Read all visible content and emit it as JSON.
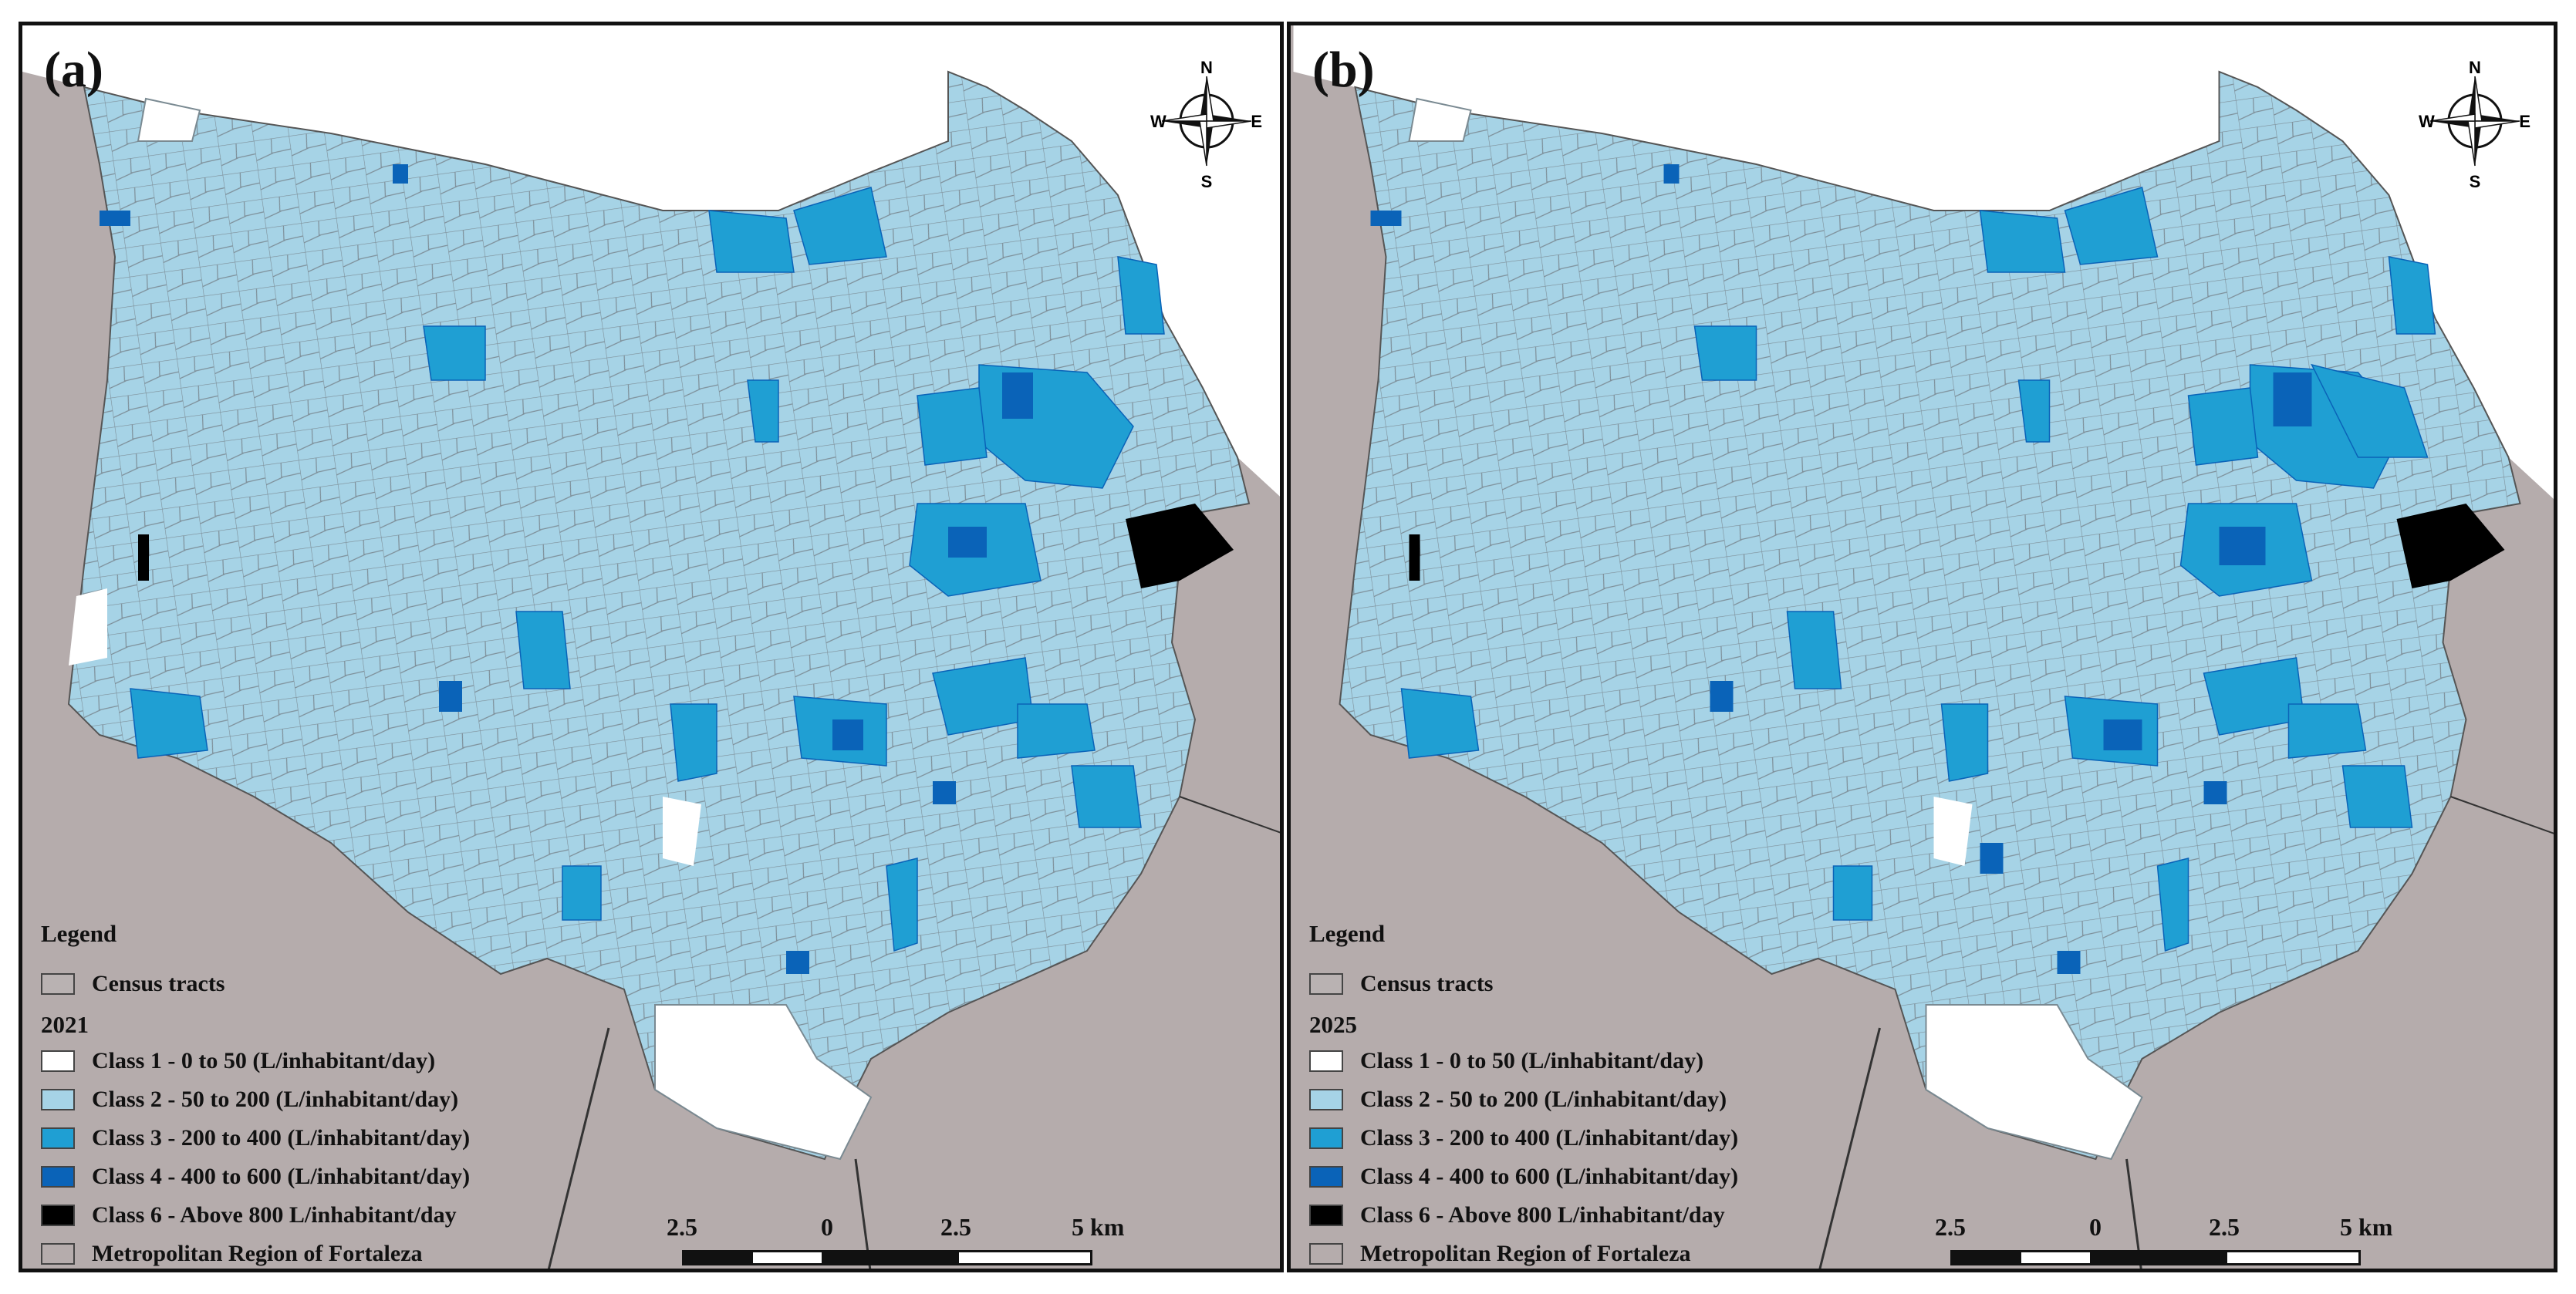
{
  "colors": {
    "outside": "#b5acac",
    "class1": "#ffffff",
    "class2": "#a6d3e6",
    "class3": "#1f9fd3",
    "class4": "#0a63b8",
    "class6": "#000000",
    "tract_border": "#7a8a92",
    "census_tracts": "#b9b2b2"
  },
  "panels": [
    {
      "label": "(a)",
      "year": "2021",
      "legend": {
        "title": "Legend",
        "census_tracts": "Census tracts",
        "classes": [
          {
            "key": "class1",
            "label": "Class 1 - 0 to 50 (L/inhabitant/day)"
          },
          {
            "key": "class2",
            "label": "Class 2 - 50 to 200 (L/inhabitant/day)"
          },
          {
            "key": "class3",
            "label": "Class 3 - 200 to 400 (L/inhabitant/day)"
          },
          {
            "key": "class4",
            "label": "Class 4 - 400 to 600 (L/inhabitant/day)"
          },
          {
            "key": "class6",
            "label": "Class 6 - Above 800 L/inhabitant/day"
          }
        ],
        "metro_region": "Metropolitan Region of Fortaleza"
      },
      "compass": {
        "n": "N",
        "s": "S",
        "e": "E",
        "w": "W"
      },
      "scale": {
        "labels": [
          "2.5",
          "0",
          "2.5",
          "5 km"
        ]
      }
    },
    {
      "label": "(b)",
      "year": "2025",
      "legend": {
        "title": "Legend",
        "census_tracts": "Census tracts",
        "classes": [
          {
            "key": "class1",
            "label": "Class 1 - 0 to 50 (L/inhabitant/day)"
          },
          {
            "key": "class2",
            "label": "Class 2 - 50 to 200 (L/inhabitant/day)"
          },
          {
            "key": "class3",
            "label": "Class 3 - 200 to 400 (L/inhabitant/day)"
          },
          {
            "key": "class4",
            "label": "Class 4 - 400 to 600 (L/inhabitant/day)"
          },
          {
            "key": "class6",
            "label": "Class 6 - Above 800 L/inhabitant/day"
          }
        ],
        "metro_region": "Metropolitan Region of Fortaleza"
      },
      "compass": {
        "n": "N",
        "s": "S",
        "e": "E",
        "w": "W"
      },
      "scale": {
        "labels": [
          "2.5",
          "0",
          "2.5",
          "5 km"
        ]
      }
    }
  ]
}
